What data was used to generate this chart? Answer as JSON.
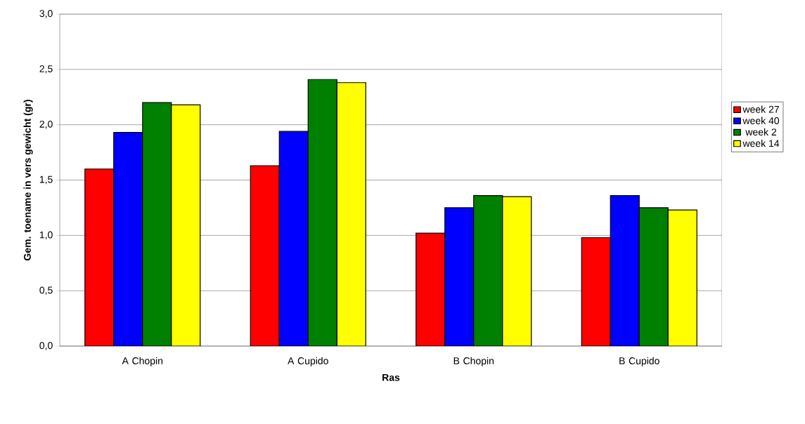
{
  "chart_data": {
    "type": "bar",
    "xlabel": "Ras",
    "ylabel": "Gem. toename in vers gewicht (gr)",
    "categories": [
      "A Chopin",
      "A Cupido",
      "B Chopin",
      "B Cupido"
    ],
    "series": [
      {
        "name": "week 27",
        "color": "#ff0000",
        "values": [
          1.6,
          1.63,
          1.02,
          0.98
        ]
      },
      {
        "name": "week 40",
        "color": "#0000ff",
        "values": [
          1.93,
          1.94,
          1.25,
          1.36
        ]
      },
      {
        "name": "week 2",
        "color": "#008000",
        "values": [
          2.2,
          2.41,
          1.36,
          1.25
        ]
      },
      {
        "name": "week 14",
        "color": "#ffff00",
        "values": [
          2.18,
          2.38,
          1.35,
          1.23
        ]
      }
    ],
    "ylim": [
      0,
      3
    ],
    "yticks": [
      {
        "value": 0,
        "label": "0,0"
      },
      {
        "value": 0.5,
        "label": "0,5"
      },
      {
        "value": 1,
        "label": "1,0"
      },
      {
        "value": 1.5,
        "label": "1,5"
      },
      {
        "value": 2,
        "label": "2,0"
      },
      {
        "value": 2.5,
        "label": "2,5"
      },
      {
        "value": 3,
        "label": "3,0"
      }
    ],
    "grid": "y",
    "legend": "right"
  }
}
